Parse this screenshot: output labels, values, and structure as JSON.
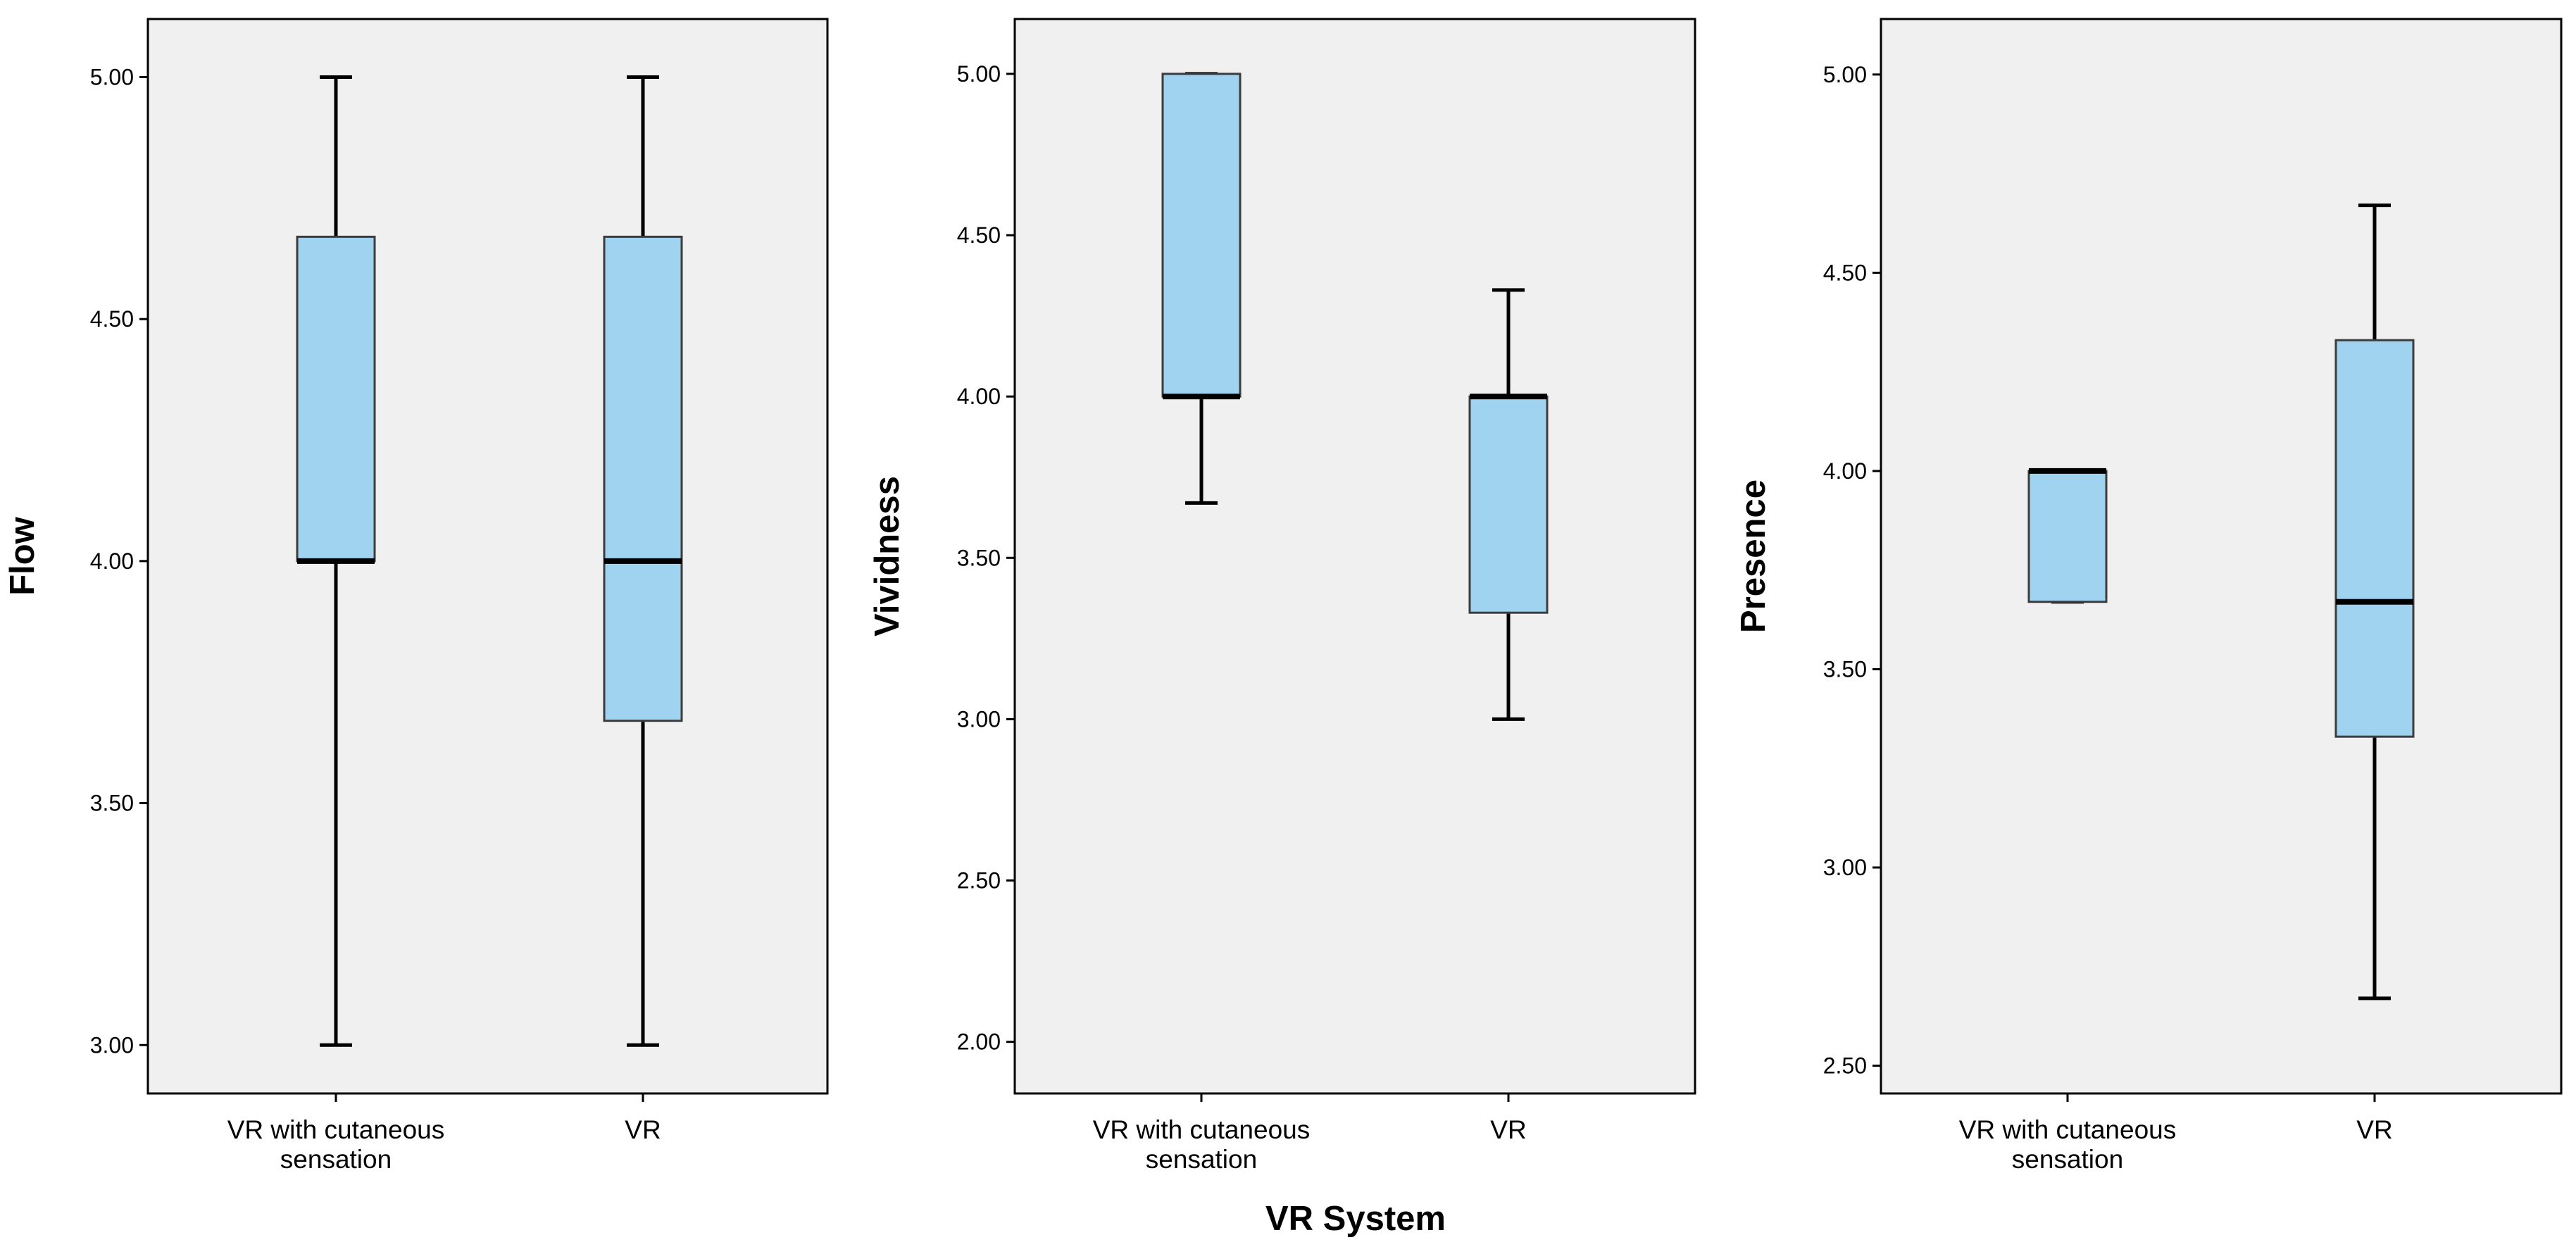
{
  "chart_data": [
    {
      "type": "boxplot",
      "ylabel": "Flow",
      "ylim": [
        2.9,
        5.12
      ],
      "yticks": [
        "3.00",
        "3.50",
        "4.00",
        "4.50",
        "5.00"
      ],
      "categories": [
        [
          "VR with cutaneous",
          "sensation"
        ],
        [
          "VR"
        ]
      ],
      "boxes": [
        {
          "min": 3.0,
          "q1": 4.0,
          "median": 4.0,
          "q3": 4.67,
          "max": 5.0
        },
        {
          "min": 3.0,
          "q1": 3.67,
          "median": 4.0,
          "q3": 4.67,
          "max": 5.0
        }
      ]
    },
    {
      "type": "boxplot",
      "ylabel": "Vividness",
      "ylim": [
        1.84,
        5.17
      ],
      "yticks": [
        "2.00",
        "2.50",
        "3.00",
        "3.50",
        "4.00",
        "4.50",
        "5.00"
      ],
      "categories": [
        [
          "VR with cutaneous",
          "sensation"
        ],
        [
          "VR"
        ]
      ],
      "boxes": [
        {
          "min": 3.67,
          "q1": 4.0,
          "median": 4.0,
          "q3": 5.0,
          "max": 5.0
        },
        {
          "min": 3.0,
          "q1": 3.33,
          "median": 4.0,
          "q3": 4.0,
          "max": 4.33
        }
      ]
    },
    {
      "type": "boxplot",
      "ylabel": "Presence",
      "ylim": [
        2.43,
        5.14
      ],
      "yticks": [
        "2.50",
        "3.00",
        "3.50",
        "4.00",
        "4.50",
        "5.00"
      ],
      "categories": [
        [
          "VR with cutaneous",
          "sensation"
        ],
        [
          "VR"
        ]
      ],
      "boxes": [
        {
          "min": 3.67,
          "q1": 3.67,
          "median": 4.0,
          "q3": 4.0,
          "max": 4.0
        },
        {
          "min": 2.67,
          "q1": 3.33,
          "median": 3.67,
          "q3": 4.33,
          "max": 4.67
        }
      ]
    }
  ],
  "shared_xlabel": "VR System",
  "colors": {
    "plot_background": "#f0f0f0",
    "box_fill": "#9fd3f0",
    "box_stroke": "#3c3c3c",
    "line": "#000000"
  }
}
